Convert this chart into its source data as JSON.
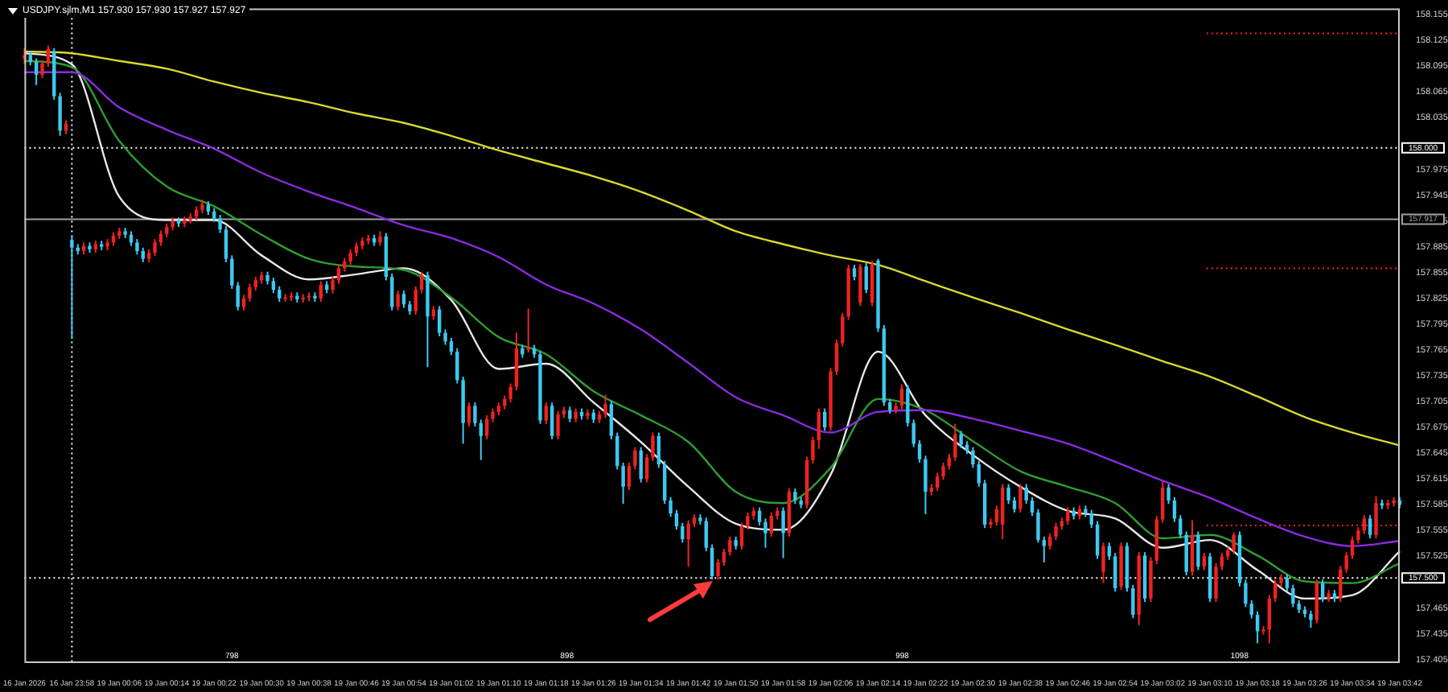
{
  "chart_data": {
    "type": "candlestick",
    "title": "USDJPY.sjlm,M1 157.930 157.930 157.927 157.927",
    "categories": [
      "16 Jan 2026",
      null,
      null,
      null,
      null,
      null,
      null,
      null,
      "16 Jan 23:58",
      null,
      null,
      null,
      null,
      null,
      null,
      null,
      "19 Jan 00:06",
      null,
      null,
      null,
      null,
      null,
      null,
      null,
      "19 Jan 00:14",
      null,
      null,
      null,
      null,
      null,
      null,
      null,
      "19 Jan 00:22",
      null,
      null,
      null,
      null,
      null,
      null,
      null,
      "19 Jan 00:30",
      null,
      null,
      null,
      null,
      null,
      null,
      null,
      "19 Jan 00:38",
      null,
      null,
      null,
      null,
      null,
      null,
      null,
      "19 Jan 00:46",
      null,
      null,
      null,
      null,
      null,
      null,
      null,
      "19 Jan 00:54",
      null,
      null,
      null,
      null,
      null,
      null,
      null,
      "19 Jan 01:02",
      null,
      null,
      null,
      null,
      null,
      null,
      null,
      "19 Jan 01:10",
      null,
      null,
      null,
      null,
      null,
      null,
      null,
      "19 Jan 01:18",
      null,
      null,
      null,
      null,
      null,
      null,
      null,
      "19 Jan 01:26",
      null,
      null,
      null,
      null,
      null,
      null,
      null,
      "19 Jan 01:34",
      null,
      null,
      null,
      null,
      null,
      null,
      null,
      "19 Jan 01:42",
      null,
      null,
      null,
      null,
      null,
      null,
      null,
      "19 Jan 01:50",
      null,
      null,
      null,
      null,
      null,
      null,
      null,
      "19 Jan 01:58",
      null,
      null,
      null,
      null,
      null,
      null,
      null,
      "19 Jan 02:06",
      null,
      null,
      null,
      null,
      null,
      null,
      null,
      "19 Jan 02:14",
      null,
      null,
      null,
      null,
      null,
      null,
      null,
      "19 Jan 02:22",
      null,
      null,
      null,
      null,
      null,
      null,
      null,
      "19 Jan 02:30",
      null,
      null,
      null,
      null,
      null,
      null,
      null,
      "19 Jan 02:38",
      null,
      null,
      null,
      null,
      null,
      null,
      null,
      "19 Jan 02:46",
      null,
      null,
      null,
      null,
      null,
      null,
      null,
      "19 Jan 02:54",
      null,
      null,
      null,
      null,
      null,
      null,
      null,
      "19 Jan 03:02",
      null,
      null,
      null,
      null,
      null,
      null,
      null,
      "19 Jan 03:10",
      null,
      null,
      null,
      null,
      null,
      null,
      null,
      "19 Jan 03:18",
      null,
      null,
      null,
      null,
      null,
      null,
      null,
      "19 Jan 03:26",
      null,
      null,
      null,
      null,
      null,
      null,
      null,
      "19 Jan 03:34",
      null,
      null,
      null,
      null,
      null,
      null,
      null,
      "19 Jan 03:42"
    ],
    "ohlc": [
      [
        158.104,
        158.116,
        158.098,
        158.108
      ],
      [
        158.108,
        158.112,
        158.096,
        158.1
      ],
      [
        158.1,
        158.104,
        158.073,
        158.085
      ],
      [
        158.085,
        158.102,
        158.081,
        158.098
      ],
      [
        158.098,
        158.119,
        158.094,
        158.115
      ],
      [
        158.112,
        158.116,
        158.056,
        158.06
      ],
      [
        158.06,
        158.064,
        158.014,
        158.02
      ],
      [
        158.02,
        158.032,
        158.016,
        158.028
      ],
      [
        157.893,
        157.898,
        157.778,
        157.884
      ],
      [
        157.884,
        157.888,
        157.876,
        157.88
      ],
      [
        157.88,
        157.89,
        157.876,
        157.886
      ],
      [
        157.886,
        157.89,
        157.878,
        157.882
      ],
      [
        157.882,
        157.892,
        157.878,
        157.888
      ],
      [
        157.888,
        157.892,
        157.881,
        157.885
      ],
      [
        157.885,
        157.894,
        157.881,
        157.89
      ],
      [
        157.89,
        157.902,
        157.886,
        157.898
      ],
      [
        157.898,
        157.907,
        157.894,
        157.903
      ],
      [
        157.903,
        157.907,
        157.895,
        157.899
      ],
      [
        157.899,
        157.903,
        157.886,
        157.89
      ],
      [
        157.89,
        157.894,
        157.876,
        157.88
      ],
      [
        157.88,
        157.884,
        157.867,
        157.871
      ],
      [
        157.871,
        157.882,
        157.867,
        157.878
      ],
      [
        157.878,
        157.894,
        157.874,
        157.89
      ],
      [
        157.89,
        157.904,
        157.886,
        157.9
      ],
      [
        157.9,
        157.912,
        157.896,
        157.908
      ],
      [
        157.908,
        157.919,
        157.904,
        157.915
      ],
      [
        157.915,
        157.919,
        157.908,
        157.912
      ],
      [
        157.912,
        157.92,
        157.908,
        157.916
      ],
      [
        157.916,
        157.924,
        157.912,
        157.92
      ],
      [
        157.92,
        157.932,
        157.916,
        157.928
      ],
      [
        157.928,
        157.94,
        157.924,
        157.934
      ],
      [
        157.934,
        157.938,
        157.922,
        157.926
      ],
      [
        157.926,
        157.93,
        157.914,
        157.918
      ],
      [
        157.918,
        157.922,
        157.901,
        157.905
      ],
      [
        157.905,
        157.909,
        157.867,
        157.871
      ],
      [
        157.871,
        157.875,
        157.836,
        157.84
      ],
      [
        157.84,
        157.844,
        157.811,
        157.815
      ],
      [
        157.815,
        157.829,
        157.811,
        157.825
      ],
      [
        157.825,
        157.842,
        157.821,
        157.838
      ],
      [
        157.838,
        157.85,
        157.834,
        157.846
      ],
      [
        157.846,
        157.856,
        157.842,
        157.852
      ],
      [
        157.852,
        157.856,
        157.841,
        157.845
      ],
      [
        157.845,
        157.849,
        157.831,
        157.835
      ],
      [
        157.835,
        157.839,
        157.821,
        157.825
      ],
      [
        157.825,
        157.83,
        157.821,
        157.826
      ],
      [
        157.826,
        157.832,
        157.822,
        157.828
      ],
      [
        157.828,
        157.832,
        157.82,
        157.824
      ],
      [
        157.824,
        157.83,
        157.82,
        157.826
      ],
      [
        157.826,
        157.832,
        157.822,
        157.828
      ],
      [
        157.828,
        157.832,
        157.821,
        157.825
      ],
      [
        157.825,
        157.845,
        157.821,
        157.841
      ],
      [
        157.841,
        157.845,
        157.831,
        157.835
      ],
      [
        157.835,
        157.85,
        157.831,
        157.846
      ],
      [
        157.846,
        157.864,
        157.842,
        157.86
      ],
      [
        157.86,
        157.872,
        157.856,
        157.868
      ],
      [
        157.868,
        157.882,
        157.864,
        157.878
      ],
      [
        157.878,
        157.89,
        157.874,
        157.886
      ],
      [
        157.886,
        157.896,
        157.882,
        157.892
      ],
      [
        157.892,
        157.899,
        157.888,
        157.895
      ],
      [
        157.895,
        157.899,
        157.886,
        157.89
      ],
      [
        157.89,
        157.903,
        157.886,
        157.897
      ],
      [
        157.897,
        157.901,
        157.846,
        157.85
      ],
      [
        157.85,
        157.854,
        157.811,
        157.815
      ],
      [
        157.815,
        157.834,
        157.811,
        157.83
      ],
      [
        157.83,
        157.834,
        157.814,
        157.818
      ],
      [
        157.818,
        157.822,
        157.806,
        157.81
      ],
      [
        157.81,
        157.839,
        157.806,
        157.835
      ],
      [
        157.835,
        157.856,
        157.831,
        157.852
      ],
      [
        157.852,
        157.856,
        157.745,
        157.804
      ],
      [
        157.804,
        157.816,
        157.8,
        157.812
      ],
      [
        157.812,
        157.816,
        157.781,
        157.785
      ],
      [
        157.785,
        157.789,
        157.771,
        157.775
      ],
      [
        157.775,
        157.779,
        157.759,
        157.763
      ],
      [
        157.763,
        157.767,
        157.726,
        157.73
      ],
      [
        157.73,
        157.734,
        157.656,
        157.68
      ],
      [
        157.68,
        157.704,
        157.676,
        157.7
      ],
      [
        157.7,
        157.704,
        157.676,
        157.68
      ],
      [
        157.68,
        157.684,
        157.637,
        157.665
      ],
      [
        157.665,
        157.689,
        157.661,
        157.685
      ],
      [
        157.685,
        157.697,
        157.681,
        157.693
      ],
      [
        157.693,
        157.704,
        157.689,
        157.7
      ],
      [
        157.7,
        157.712,
        157.696,
        157.708
      ],
      [
        157.708,
        157.726,
        157.704,
        157.722
      ],
      [
        157.722,
        157.785,
        157.718,
        157.767
      ],
      [
        157.767,
        157.771,
        157.756,
        157.76
      ],
      [
        157.766,
        157.813,
        157.762,
        157.767
      ],
      [
        157.767,
        157.771,
        157.756,
        157.76
      ],
      [
        157.76,
        157.764,
        157.679,
        157.683
      ],
      [
        157.683,
        157.704,
        157.679,
        157.7
      ],
      [
        157.7,
        157.704,
        157.661,
        157.665
      ],
      [
        157.665,
        157.694,
        157.661,
        157.69
      ],
      [
        157.69,
        157.699,
        157.686,
        157.695
      ],
      [
        157.695,
        157.699,
        157.681,
        157.685
      ],
      [
        157.685,
        157.697,
        157.681,
        157.693
      ],
      [
        157.693,
        157.697,
        157.684,
        157.688
      ],
      [
        157.688,
        157.696,
        157.684,
        157.692
      ],
      [
        157.692,
        157.696,
        157.68,
        157.684
      ],
      [
        157.684,
        157.694,
        157.68,
        157.69
      ],
      [
        157.69,
        157.713,
        157.686,
        157.702
      ],
      [
        157.702,
        157.706,
        157.661,
        157.665
      ],
      [
        157.665,
        157.669,
        157.626,
        157.63
      ],
      [
        157.63,
        157.634,
        157.586,
        157.606
      ],
      [
        157.606,
        157.634,
        157.602,
        157.63
      ],
      [
        157.63,
        157.652,
        157.626,
        157.648
      ],
      [
        157.648,
        157.652,
        157.611,
        157.615
      ],
      [
        157.615,
        157.644,
        157.611,
        157.64
      ],
      [
        157.64,
        157.669,
        157.636,
        157.665
      ],
      [
        157.665,
        157.669,
        157.628,
        157.632
      ],
      [
        157.632,
        157.636,
        157.586,
        157.59
      ],
      [
        157.59,
        157.594,
        157.571,
        157.575
      ],
      [
        157.575,
        157.579,
        157.556,
        157.56
      ],
      [
        157.56,
        157.564,
        157.541,
        157.545
      ],
      [
        157.545,
        157.567,
        157.513,
        157.563
      ],
      [
        157.563,
        157.574,
        157.559,
        157.57
      ],
      [
        157.57,
        157.574,
        157.562,
        157.566
      ],
      [
        157.566,
        157.57,
        157.531,
        157.535
      ],
      [
        157.535,
        157.539,
        157.498,
        157.502
      ],
      [
        157.502,
        157.522,
        157.498,
        157.518
      ],
      [
        157.518,
        157.534,
        157.514,
        157.53
      ],
      [
        157.53,
        157.548,
        157.526,
        157.544
      ],
      [
        157.544,
        157.548,
        157.533,
        157.537
      ],
      [
        157.537,
        157.564,
        157.533,
        157.56
      ],
      [
        157.56,
        157.576,
        157.556,
        157.572
      ],
      [
        157.572,
        157.582,
        157.568,
        157.578
      ],
      [
        157.578,
        157.582,
        157.561,
        157.565
      ],
      [
        157.565,
        157.569,
        157.535,
        157.552
      ],
      [
        157.552,
        157.576,
        157.548,
        157.572
      ],
      [
        157.572,
        157.582,
        157.568,
        157.578
      ],
      [
        157.578,
        157.582,
        157.523,
        157.552
      ],
      [
        157.552,
        157.604,
        157.548,
        157.6
      ],
      [
        157.6,
        157.604,
        157.586,
        157.59
      ],
      [
        157.59,
        157.594,
        157.581,
        157.585
      ],
      [
        157.585,
        157.641,
        157.581,
        157.637
      ],
      [
        157.637,
        157.664,
        157.633,
        157.66
      ],
      [
        157.66,
        157.697,
        157.65,
        157.693
      ],
      [
        157.693,
        157.697,
        157.671,
        157.675
      ],
      [
        157.675,
        157.744,
        157.671,
        157.74
      ],
      [
        157.74,
        157.777,
        157.736,
        157.773
      ],
      [
        157.773,
        157.808,
        157.769,
        157.804
      ],
      [
        157.804,
        157.864,
        157.8,
        157.86
      ],
      [
        157.86,
        157.864,
        157.846,
        157.85
      ],
      [
        157.82,
        157.865,
        157.816,
        157.862
      ],
      [
        157.862,
        157.866,
        157.831,
        157.835
      ],
      [
        157.82,
        157.869,
        157.816,
        157.865
      ],
      [
        157.869,
        157.871,
        157.786,
        157.79
      ],
      [
        157.79,
        157.794,
        157.7,
        157.704
      ],
      [
        157.704,
        157.708,
        157.691,
        157.695
      ],
      [
        157.695,
        157.704,
        157.691,
        157.7
      ],
      [
        157.7,
        157.725,
        157.696,
        157.72
      ],
      [
        157.72,
        157.724,
        157.676,
        157.68
      ],
      [
        157.68,
        157.684,
        157.652,
        157.656
      ],
      [
        157.656,
        157.66,
        157.634,
        157.638
      ],
      [
        157.638,
        157.642,
        157.574,
        157.6
      ],
      [
        157.6,
        157.609,
        157.596,
        157.605
      ],
      [
        157.605,
        157.622,
        157.601,
        157.618
      ],
      [
        157.618,
        157.634,
        157.614,
        157.63
      ],
      [
        157.63,
        157.644,
        157.626,
        157.64
      ],
      [
        157.64,
        157.679,
        157.636,
        157.667
      ],
      [
        157.667,
        157.671,
        157.651,
        157.655
      ],
      [
        157.655,
        157.659,
        157.644,
        157.648
      ],
      [
        157.648,
        157.652,
        157.628,
        157.632
      ],
      [
        157.632,
        157.636,
        157.606,
        157.61
      ],
      [
        157.61,
        157.614,
        157.558,
        157.562
      ],
      [
        157.562,
        157.569,
        157.558,
        157.565
      ],
      [
        157.565,
        157.584,
        157.561,
        157.58
      ],
      [
        157.562,
        157.609,
        157.545,
        157.605
      ],
      [
        157.605,
        157.609,
        157.586,
        157.59
      ],
      [
        157.59,
        157.594,
        157.576,
        157.58
      ],
      [
        157.58,
        157.609,
        157.576,
        157.605
      ],
      [
        157.605,
        157.609,
        157.586,
        157.59
      ],
      [
        157.59,
        157.594,
        157.572,
        157.576
      ],
      [
        157.576,
        157.58,
        157.541,
        157.544
      ],
      [
        157.544,
        157.548,
        157.518,
        157.537
      ],
      [
        157.537,
        157.552,
        157.533,
        157.548
      ],
      [
        157.548,
        157.564,
        157.544,
        157.56
      ],
      [
        157.56,
        157.57,
        157.556,
        157.566
      ],
      [
        157.566,
        157.582,
        157.562,
        157.578
      ],
      [
        157.578,
        157.582,
        157.568,
        157.572
      ],
      [
        157.572,
        157.584,
        157.568,
        157.58
      ],
      [
        157.58,
        157.584,
        157.571,
        157.575
      ],
      [
        157.575,
        157.579,
        157.558,
        157.562
      ],
      [
        157.562,
        157.566,
        157.522,
        157.526
      ],
      [
        157.507,
        157.541,
        157.494,
        157.537
      ],
      [
        157.537,
        157.541,
        157.521,
        157.525
      ],
      [
        157.525,
        157.529,
        157.484,
        157.488
      ],
      [
        157.49,
        157.541,
        157.486,
        157.537
      ],
      [
        157.537,
        157.541,
        157.484,
        157.488
      ],
      [
        157.488,
        157.492,
        157.453,
        157.457
      ],
      [
        157.457,
        157.53,
        157.445,
        157.526
      ],
      [
        157.526,
        157.53,
        157.472,
        157.476
      ],
      [
        157.476,
        157.524,
        157.472,
        157.52
      ],
      [
        157.52,
        157.572,
        157.516,
        157.568
      ],
      [
        157.568,
        157.612,
        157.564,
        157.605
      ],
      [
        157.605,
        157.609,
        157.586,
        157.59
      ],
      [
        157.59,
        157.594,
        157.565,
        157.569
      ],
      [
        157.569,
        157.573,
        157.546,
        157.55
      ],
      [
        157.55,
        157.554,
        157.503,
        157.507
      ],
      [
        157.507,
        157.567,
        157.503,
        157.55
      ],
      [
        157.55,
        157.554,
        157.509,
        157.513
      ],
      [
        157.513,
        157.529,
        157.509,
        157.525
      ],
      [
        157.525,
        157.529,
        157.472,
        157.476
      ],
      [
        157.476,
        157.517,
        157.472,
        157.513
      ],
      [
        157.513,
        157.529,
        157.509,
        157.525
      ],
      [
        157.525,
        157.536,
        157.521,
        157.532
      ],
      [
        157.532,
        157.553,
        157.528,
        157.55
      ],
      [
        157.55,
        157.554,
        157.49,
        157.494
      ],
      [
        157.494,
        157.498,
        157.466,
        157.47
      ],
      [
        157.47,
        157.474,
        157.453,
        157.457
      ],
      [
        157.457,
        157.461,
        157.424,
        157.438
      ],
      [
        157.438,
        157.444,
        157.434,
        157.44
      ],
      [
        157.44,
        157.48,
        157.424,
        157.476
      ],
      [
        157.476,
        157.498,
        157.472,
        157.494
      ],
      [
        157.494,
        157.504,
        157.49,
        157.5
      ],
      [
        157.5,
        157.504,
        157.484,
        157.488
      ],
      [
        157.488,
        157.492,
        157.466,
        157.47
      ],
      [
        157.47,
        157.474,
        157.459,
        157.463
      ],
      [
        157.463,
        157.467,
        157.454,
        157.458
      ],
      [
        157.458,
        157.462,
        157.442,
        157.451
      ],
      [
        157.451,
        157.498,
        157.447,
        157.494
      ],
      [
        157.494,
        157.498,
        157.472,
        157.476
      ],
      [
        157.476,
        157.486,
        157.472,
        157.482
      ],
      [
        157.482,
        157.486,
        157.472,
        157.476
      ],
      [
        157.476,
        157.514,
        157.472,
        157.51
      ],
      [
        157.51,
        157.53,
        157.506,
        157.526
      ],
      [
        157.526,
        157.548,
        157.522,
        157.544
      ],
      [
        157.544,
        157.559,
        157.54,
        157.555
      ],
      [
        157.555,
        157.573,
        157.551,
        157.569
      ],
      [
        157.569,
        157.573,
        157.546,
        157.55
      ],
      [
        157.55,
        157.595,
        157.546,
        157.587
      ],
      [
        157.587,
        157.591,
        157.58,
        157.584
      ],
      [
        157.584,
        157.591,
        157.58,
        157.587
      ],
      [
        157.587,
        157.594,
        157.583,
        157.59
      ],
      [
        157.59,
        157.594,
        157.581,
        157.585
      ]
    ],
    "colors": [
      "#ee2222",
      "#3ec8f0",
      "#3ec8f0",
      "#ee2222",
      "#ee2222",
      "#3ec8f0",
      "#3ec8f0",
      "#ee2222",
      "#3ec8f0",
      "#3ec8f0",
      "#ee2222",
      "#3ec8f0",
      "#ee2222",
      "#3ec8f0",
      "#ee2222",
      "#ee2222",
      "#ee2222",
      "#3ec8f0",
      "#3ec8f0",
      "#3ec8f0",
      "#3ec8f0",
      "#ee2222",
      "#ee2222",
      "#ee2222",
      "#ee2222",
      "#ee2222",
      "#3ec8f0",
      "#ee2222",
      "#ee2222",
      "#ee2222",
      "#ee2222",
      "#3ec8f0",
      "#3ec8f0",
      "#3ec8f0",
      "#3ec8f0",
      "#3ec8f0",
      "#3ec8f0",
      "#ee2222",
      "#ee2222",
      "#ee2222",
      "#ee2222",
      "#3ec8f0",
      "#3ec8f0",
      "#3ec8f0",
      "#ee2222",
      "#ee2222",
      "#3ec8f0",
      "#ee2222",
      "#ee2222",
      "#3ec8f0",
      "#ee2222",
      "#3ec8f0",
      "#ee2222",
      "#ee2222",
      "#ee2222",
      "#ee2222",
      "#ee2222",
      "#ee2222",
      "#ee2222",
      "#3ec8f0",
      "#ee2222",
      "#3ec8f0",
      "#3ec8f0",
      "#ee2222",
      "#3ec8f0",
      "#3ec8f0",
      "#ee2222",
      "#ee2222",
      "#3ec8f0",
      "#ee2222",
      "#3ec8f0",
      "#3ec8f0",
      "#3ec8f0",
      "#3ec8f0",
      "#3ec8f0",
      "#ee2222",
      "#3ec8f0",
      "#3ec8f0",
      "#ee2222",
      "#ee2222",
      "#ee2222",
      "#ee2222",
      "#ee2222",
      "#ee2222",
      "#3ec8f0",
      "#ee2222",
      "#3ec8f0",
      "#3ec8f0",
      "#ee2222",
      "#3ec8f0",
      "#ee2222",
      "#ee2222",
      "#3ec8f0",
      "#ee2222",
      "#3ec8f0",
      "#ee2222",
      "#3ec8f0",
      "#ee2222",
      "#ee2222",
      "#3ec8f0",
      "#3ec8f0",
      "#3ec8f0",
      "#ee2222",
      "#ee2222",
      "#3ec8f0",
      "#ee2222",
      "#ee2222",
      "#3ec8f0",
      "#3ec8f0",
      "#3ec8f0",
      "#3ec8f0",
      "#3ec8f0",
      "#ee2222",
      "#ee2222",
      "#3ec8f0",
      "#3ec8f0",
      "#3ec8f0",
      "#ee2222",
      "#ee2222",
      "#ee2222",
      "#3ec8f0",
      "#ee2222",
      "#ee2222",
      "#ee2222",
      "#3ec8f0",
      "#3ec8f0",
      "#ee2222",
      "#ee2222",
      "#3ec8f0",
      "#ee2222",
      "#3ec8f0",
      "#3ec8f0",
      "#ee2222",
      "#ee2222",
      "#ee2222",
      "#3ec8f0",
      "#ee2222",
      "#ee2222",
      "#ee2222",
      "#ee2222",
      "#3ec8f0",
      "#ee2222",
      "#3ec8f0",
      "#ee2222",
      "#3ec8f0",
      "#3ec8f0",
      "#3ec8f0",
      "#ee2222",
      "#ee2222",
      "#3ec8f0",
      "#3ec8f0",
      "#3ec8f0",
      "#3ec8f0",
      "#ee2222",
      "#ee2222",
      "#ee2222",
      "#ee2222",
      "#ee2222",
      "#3ec8f0",
      "#3ec8f0",
      "#3ec8f0",
      "#3ec8f0",
      "#3ec8f0",
      "#ee2222",
      "#ee2222",
      "#ee2222",
      "#3ec8f0",
      "#3ec8f0",
      "#ee2222",
      "#3ec8f0",
      "#3ec8f0",
      "#3ec8f0",
      "#3ec8f0",
      "#ee2222",
      "#ee2222",
      "#ee2222",
      "#ee2222",
      "#3ec8f0",
      "#ee2222",
      "#3ec8f0",
      "#3ec8f0",
      "#3ec8f0",
      "#ee2222",
      "#3ec8f0",
      "#3ec8f0",
      "#ee2222",
      "#3ec8f0",
      "#3ec8f0",
      "#ee2222",
      "#3ec8f0",
      "#ee2222",
      "#ee2222",
      "#ee2222",
      "#3ec8f0",
      "#3ec8f0",
      "#3ec8f0",
      "#3ec8f0",
      "#ee2222",
      "#3ec8f0",
      "#ee2222",
      "#3ec8f0",
      "#ee2222",
      "#ee2222",
      "#ee2222",
      "#ee2222",
      "#3ec8f0",
      "#3ec8f0",
      "#3ec8f0",
      "#3ec8f0",
      "#ee2222",
      "#ee2222",
      "#ee2222",
      "#ee2222",
      "#3ec8f0",
      "#3ec8f0",
      "#3ec8f0",
      "#3ec8f0",
      "#3ec8f0",
      "#ee2222",
      "#3ec8f0",
      "#ee2222",
      "#3ec8f0",
      "#ee2222",
      "#ee2222",
      "#ee2222",
      "#ee2222",
      "#ee2222",
      "#3ec8f0",
      "#ee2222",
      "#3ec8f0",
      "#ee2222",
      "#ee2222",
      "#3ec8f0"
    ],
    "series": [
      {
        "type": "line",
        "color": "#d8d830",
        "x": [
          "16 Jan 2026",
          "16 Jan 23:58",
          "19 Jan 00:06",
          "19 Jan 00:14",
          "19 Jan 00:22",
          "19 Jan 00:30",
          "19 Jan 00:38",
          "19 Jan 00:46",
          "19 Jan 00:54",
          "19 Jan 01:02",
          "19 Jan 01:10",
          "19 Jan 01:18",
          "19 Jan 01:26",
          "19 Jan 01:34",
          "19 Jan 01:42",
          "19 Jan 01:50",
          "19 Jan 01:58",
          "19 Jan 02:06",
          "19 Jan 02:14",
          "19 Jan 02:22",
          "19 Jan 02:30",
          "19 Jan 02:38",
          "19 Jan 02:46",
          "19 Jan 02:54",
          "19 Jan 03:02",
          "19 Jan 03:10",
          "19 Jan 03:18",
          "19 Jan 03:26",
          "19 Jan 03:34",
          "19 Jan 03:42"
        ],
        "values": [
          158.112,
          158.11,
          158.101,
          158.092,
          158.077,
          158.064,
          158.053,
          158.04,
          158.029,
          158.014,
          157.997,
          157.982,
          157.967,
          157.949,
          157.927,
          157.903,
          157.888,
          157.875,
          157.864,
          157.845,
          157.826,
          157.808,
          157.789,
          157.771,
          157.752,
          157.734,
          157.711,
          157.687,
          157.669,
          157.654
        ]
      },
      {
        "type": "line",
        "color": "#8a2be2",
        "x": [
          "16 Jan 2026",
          "16 Jan 23:58",
          "19 Jan 00:06",
          "19 Jan 00:14",
          "19 Jan 00:22",
          "19 Jan 00:30",
          "19 Jan 00:38",
          "19 Jan 00:46",
          "19 Jan 00:54",
          "19 Jan 01:02",
          "19 Jan 01:10",
          "19 Jan 01:18",
          "19 Jan 01:26",
          "19 Jan 01:34",
          "19 Jan 01:42",
          "19 Jan 01:50",
          "19 Jan 01:58",
          "19 Jan 02:06",
          "19 Jan 02:14",
          "19 Jan 02:22",
          "19 Jan 02:30",
          "19 Jan 02:38",
          "19 Jan 02:46",
          "19 Jan 02:54",
          "19 Jan 03:02",
          "19 Jan 03:10",
          "19 Jan 03:18",
          "19 Jan 03:26",
          "19 Jan 03:34",
          "19 Jan 03:42"
        ],
        "values": [
          158.088,
          158.088,
          158.047,
          158.021,
          157.999,
          157.971,
          157.949,
          157.93,
          157.91,
          157.895,
          157.873,
          157.841,
          157.819,
          157.789,
          157.75,
          157.71,
          157.689,
          157.669,
          157.693,
          157.695,
          157.685,
          157.671,
          157.656,
          157.635,
          157.613,
          157.593,
          157.569,
          157.548,
          157.537,
          157.543
        ]
      },
      {
        "type": "line",
        "color": "#2e9e2e",
        "x": [
          "16 Jan 2026",
          "16 Jan 23:58",
          "19 Jan 00:06",
          "19 Jan 00:14",
          "19 Jan 00:22",
          "19 Jan 00:30",
          "19 Jan 00:38",
          "19 Jan 00:46",
          "19 Jan 00:54",
          "19 Jan 01:02",
          "19 Jan 01:10",
          "19 Jan 01:18",
          "19 Jan 01:26",
          "19 Jan 01:34",
          "19 Jan 01:42",
          "19 Jan 01:50",
          "19 Jan 01:58",
          "19 Jan 02:06",
          "19 Jan 02:14",
          "19 Jan 02:22",
          "19 Jan 02:30",
          "19 Jan 02:38",
          "19 Jan 02:46",
          "19 Jan 02:54",
          "19 Jan 03:02",
          "19 Jan 03:10",
          "19 Jan 03:18",
          "19 Jan 03:26",
          "19 Jan 03:34",
          "19 Jan 03:42"
        ],
        "values": [
          158.101,
          158.094,
          158.008,
          157.955,
          157.932,
          157.899,
          157.871,
          157.862,
          157.858,
          157.826,
          157.78,
          157.76,
          157.717,
          157.689,
          157.658,
          157.6,
          157.587,
          157.628,
          157.708,
          157.695,
          157.659,
          157.624,
          157.606,
          157.587,
          157.546,
          157.55,
          157.526,
          157.496,
          157.494,
          157.517
        ]
      },
      {
        "type": "line",
        "color": "#e8e8e8",
        "x": [
          "16 Jan 2026",
          "16 Jan 23:58",
          "19 Jan 00:06",
          "19 Jan 00:14",
          "19 Jan 00:22",
          "19 Jan 00:30",
          "19 Jan 00:38",
          "19 Jan 00:46",
          "19 Jan 00:54",
          "19 Jan 01:02",
          "19 Jan 01:10",
          "19 Jan 01:18",
          "19 Jan 01:26",
          "19 Jan 01:34",
          "19 Jan 01:42",
          "19 Jan 01:50",
          "19 Jan 01:58",
          "19 Jan 02:06",
          "19 Jan 02:14",
          "19 Jan 02:22",
          "19 Jan 02:30",
          "19 Jan 02:38",
          "19 Jan 02:46",
          "19 Jan 02:54",
          "19 Jan 03:02",
          "19 Jan 03:10",
          "19 Jan 03:18",
          "19 Jan 03:26",
          "19 Jan 03:34",
          "19 Jan 03:42"
        ],
        "values": [
          158.11,
          158.097,
          157.943,
          157.916,
          157.916,
          157.875,
          157.847,
          157.853,
          157.86,
          157.823,
          157.743,
          157.749,
          157.704,
          157.658,
          157.606,
          157.563,
          157.556,
          157.62,
          157.763,
          157.689,
          157.643,
          157.606,
          157.578,
          157.569,
          157.535,
          157.544,
          157.509,
          157.476,
          157.48,
          157.531
        ]
      }
    ],
    "ylim": [
      157.401,
      158.162
    ],
    "yticks": [
      158.155,
      158.125,
      158.095,
      158.065,
      158.035,
      157.975,
      157.945,
      157.915,
      157.885,
      157.855,
      157.825,
      157.795,
      157.765,
      157.735,
      157.705,
      157.675,
      157.645,
      157.615,
      157.585,
      157.555,
      157.525,
      157.465,
      157.435,
      157.405
    ],
    "ref_lines": [
      {
        "axis": "y",
        "value": 158.0,
        "label": "158.000",
        "color": "#ffffff",
        "line_style": "dotted"
      },
      {
        "axis": "y",
        "value": 157.917,
        "label": "157.917",
        "color": "#a0a0a0",
        "line_style": "solid"
      },
      {
        "axis": "y",
        "value": 157.5,
        "label": "157.500",
        "color": "#ffffff",
        "line_style": "dotted"
      },
      {
        "axis": "y",
        "value": 158.133,
        "color": "#ff2020",
        "line_style": "dotted"
      },
      {
        "axis": "y",
        "value": 157.86,
        "color": "#ff2020",
        "line_style": "dotted"
      },
      {
        "axis": "y",
        "value": 157.561,
        "color": "#ff2020",
        "line_style": "dotted"
      },
      {
        "axis": "x",
        "value": "16 Jan 23:58",
        "color": "#ffffff",
        "line_style": "dotted"
      }
    ],
    "annotations": [
      "798",
      "898",
      "998",
      "1098"
    ]
  }
}
